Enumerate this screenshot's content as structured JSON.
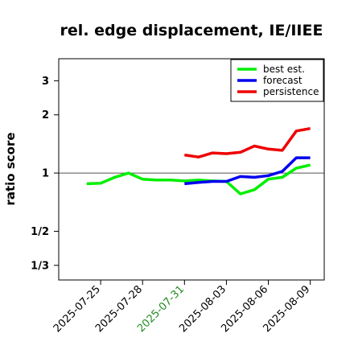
{
  "chart_data": {
    "type": "line",
    "title": "rel. edge displacement, IE/IIEE",
    "xlabel": "",
    "ylabel": "ratio score",
    "scale": "log",
    "ylim": [
      0.28,
      3.9
    ],
    "yticks": [
      {
        "value": 3,
        "label": "3"
      },
      {
        "value": 2,
        "label": "2"
      },
      {
        "value": 1,
        "label": "1"
      },
      {
        "value": 0.5,
        "label": "1/2"
      },
      {
        "value": 0.3333,
        "label": "1/3"
      }
    ],
    "x": [
      "2025-07-24",
      "2025-07-25",
      "2025-07-26",
      "2025-07-27",
      "2025-07-28",
      "2025-07-29",
      "2025-07-30",
      "2025-07-31",
      "2025-08-01",
      "2025-08-02",
      "2025-08-03",
      "2025-08-04",
      "2025-08-05",
      "2025-08-06",
      "2025-08-07",
      "2025-08-08",
      "2025-08-09"
    ],
    "xlim": [
      "2025-07-22",
      "2025-08-10"
    ],
    "xticks": [
      {
        "label": "2025-07-25",
        "color": "#000000"
      },
      {
        "label": "2025-07-28",
        "color": "#000000"
      },
      {
        "label": "2025-07-31",
        "color": "#228b22"
      },
      {
        "label": "2025-08-03",
        "color": "#000000"
      },
      {
        "label": "2025-08-06",
        "color": "#000000"
      },
      {
        "label": "2025-08-09",
        "color": "#000000"
      }
    ],
    "reference_line": 1,
    "legend_position": "top-right",
    "series": [
      {
        "name": "best est.",
        "color": "#00ee00",
        "values": [
          0.88,
          0.885,
          0.95,
          1.0,
          0.93,
          0.92,
          0.92,
          0.91,
          0.92,
          0.91,
          0.905,
          0.78,
          0.82,
          0.93,
          0.95,
          1.06,
          1.1
        ]
      },
      {
        "name": "forecast",
        "color": "#0000ee",
        "values": [
          null,
          null,
          null,
          null,
          null,
          null,
          null,
          0.88,
          0.895,
          0.905,
          0.905,
          0.96,
          0.95,
          0.97,
          1.02,
          1.2,
          1.2
        ]
      },
      {
        "name": "persistence",
        "color": "#ee0000",
        "values": [
          null,
          null,
          null,
          null,
          null,
          null,
          null,
          1.24,
          1.21,
          1.27,
          1.26,
          1.28,
          1.38,
          1.33,
          1.31,
          1.65,
          1.7
        ]
      }
    ]
  }
}
